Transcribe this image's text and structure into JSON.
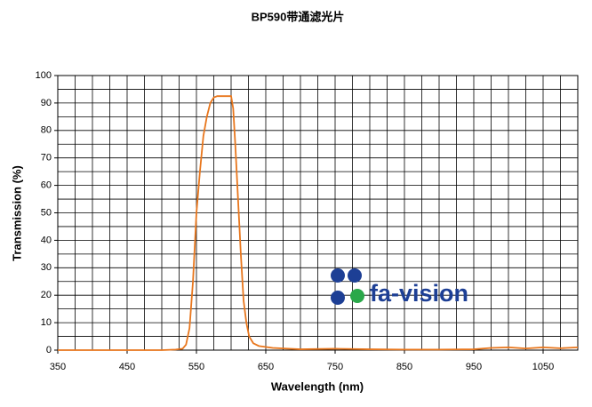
{
  "chart_data": {
    "type": "line",
    "title": "BP590带通滤光片",
    "x_label": "Wavelength (nm)",
    "y_label": "Transmission (%)",
    "logo": "fa-vision",
    "xlim": [
      350,
      1100
    ],
    "ylim": [
      0,
      100
    ],
    "xticks": [
      350,
      450,
      550,
      650,
      750,
      850,
      950,
      1050
    ],
    "yticks": [
      0,
      10,
      20,
      30,
      40,
      50,
      60,
      70,
      80,
      90,
      100
    ],
    "xgrid": [
      350,
      375,
      400,
      425,
      450,
      475,
      500,
      525,
      550,
      575,
      600,
      625,
      650,
      675,
      700,
      725,
      750,
      775,
      800,
      825,
      850,
      875,
      900,
      925,
      950,
      975,
      1000,
      1025,
      1050,
      1075,
      1100
    ],
    "ygrid": [
      0,
      5,
      10,
      15,
      20,
      25,
      30,
      35,
      40,
      45,
      50,
      55,
      60,
      65,
      70,
      75,
      80,
      85,
      90,
      95,
      100
    ],
    "grid": true,
    "series": [
      {
        "color": "#e8761c",
        "x": [
          350,
          500,
          520,
          530,
          535,
          540,
          545,
          550,
          555,
          560,
          565,
          570,
          575,
          580,
          600,
          603,
          606,
          610,
          614,
          618,
          622,
          626,
          632,
          640,
          660,
          700,
          750,
          800,
          850,
          900,
          950,
          975,
          1000,
          1025,
          1050,
          1075,
          1100
        ],
        "values": [
          0,
          0,
          0.2,
          0.5,
          2,
          8,
          25,
          50,
          65,
          78,
          85,
          90,
          92,
          92.5,
          92.5,
          88,
          75,
          55,
          35,
          18,
          10,
          5,
          2.5,
          1.5,
          0.8,
          0.3,
          0.5,
          0.3,
          0.2,
          0.2,
          0.3,
          0.8,
          1,
          0.6,
          1,
          0.7,
          1
        ]
      }
    ]
  }
}
